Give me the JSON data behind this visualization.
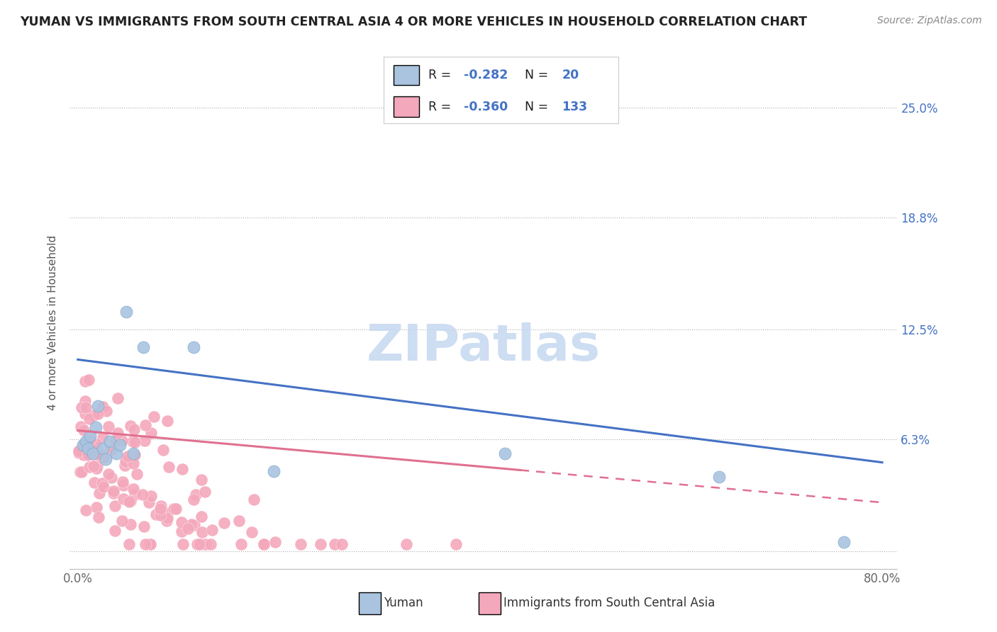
{
  "title": "YUMAN VS IMMIGRANTS FROM SOUTH CENTRAL ASIA 4 OR MORE VEHICLES IN HOUSEHOLD CORRELATION CHART",
  "source": "Source: ZipAtlas.com",
  "ylabel": "4 or more Vehicles in Household",
  "y_ticks": [
    0.0,
    0.063,
    0.125,
    0.188,
    0.25
  ],
  "y_tick_labels": [
    "",
    "6.3%",
    "12.5%",
    "18.8%",
    "25.0%"
  ],
  "x_tick_vals": [
    0.0,
    0.1,
    0.2,
    0.3,
    0.4,
    0.5,
    0.6,
    0.7,
    0.8
  ],
  "x_tick_labels": [
    "0.0%",
    "",
    "",
    "",
    "",
    "",
    "",
    "",
    "80.0%"
  ],
  "blue_R": -0.282,
  "blue_N": 20,
  "pink_R": -0.36,
  "pink_N": 133,
  "blue_color": "#aac4e0",
  "pink_color": "#f4a8bc",
  "blue_line_color": "#4472c4",
  "pink_line_color": "#e07090",
  "blue_line_x0": 0.0,
  "blue_line_y0": 0.108,
  "blue_line_x1": 0.8,
  "blue_line_y1": 0.05,
  "pink_line_x0": 0.0,
  "pink_line_y0": 0.068,
  "pink_line_x1": 0.65,
  "pink_line_y1": 0.035,
  "blue_scatter_x": [
    0.005,
    0.008,
    0.01,
    0.012,
    0.015,
    0.018,
    0.02,
    0.025,
    0.028,
    0.032,
    0.038,
    0.042,
    0.048,
    0.055,
    0.065,
    0.115,
    0.195,
    0.425,
    0.638,
    0.762
  ],
  "blue_scatter_y": [
    0.06,
    0.062,
    0.058,
    0.065,
    0.055,
    0.07,
    0.082,
    0.058,
    0.052,
    0.062,
    0.055,
    0.06,
    0.135,
    0.055,
    0.115,
    0.115,
    0.045,
    0.055,
    0.042,
    0.005
  ],
  "watermark_text": "ZIPatlas",
  "watermark_color": "#c5d8f0",
  "legend_label_blue": "Yuman",
  "legend_label_pink": "Immigrants from South Central Asia"
}
